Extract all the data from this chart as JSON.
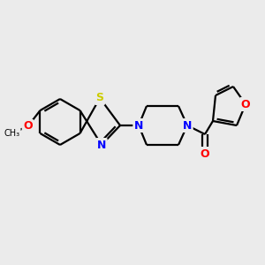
{
  "background_color": "#ebebeb",
  "bond_color": "#000000",
  "atom_colors": {
    "N": "#0000ff",
    "O": "#ff0000",
    "S": "#cccc00",
    "C": "#000000"
  },
  "figsize": [
    3.0,
    3.0
  ],
  "dpi": 100
}
